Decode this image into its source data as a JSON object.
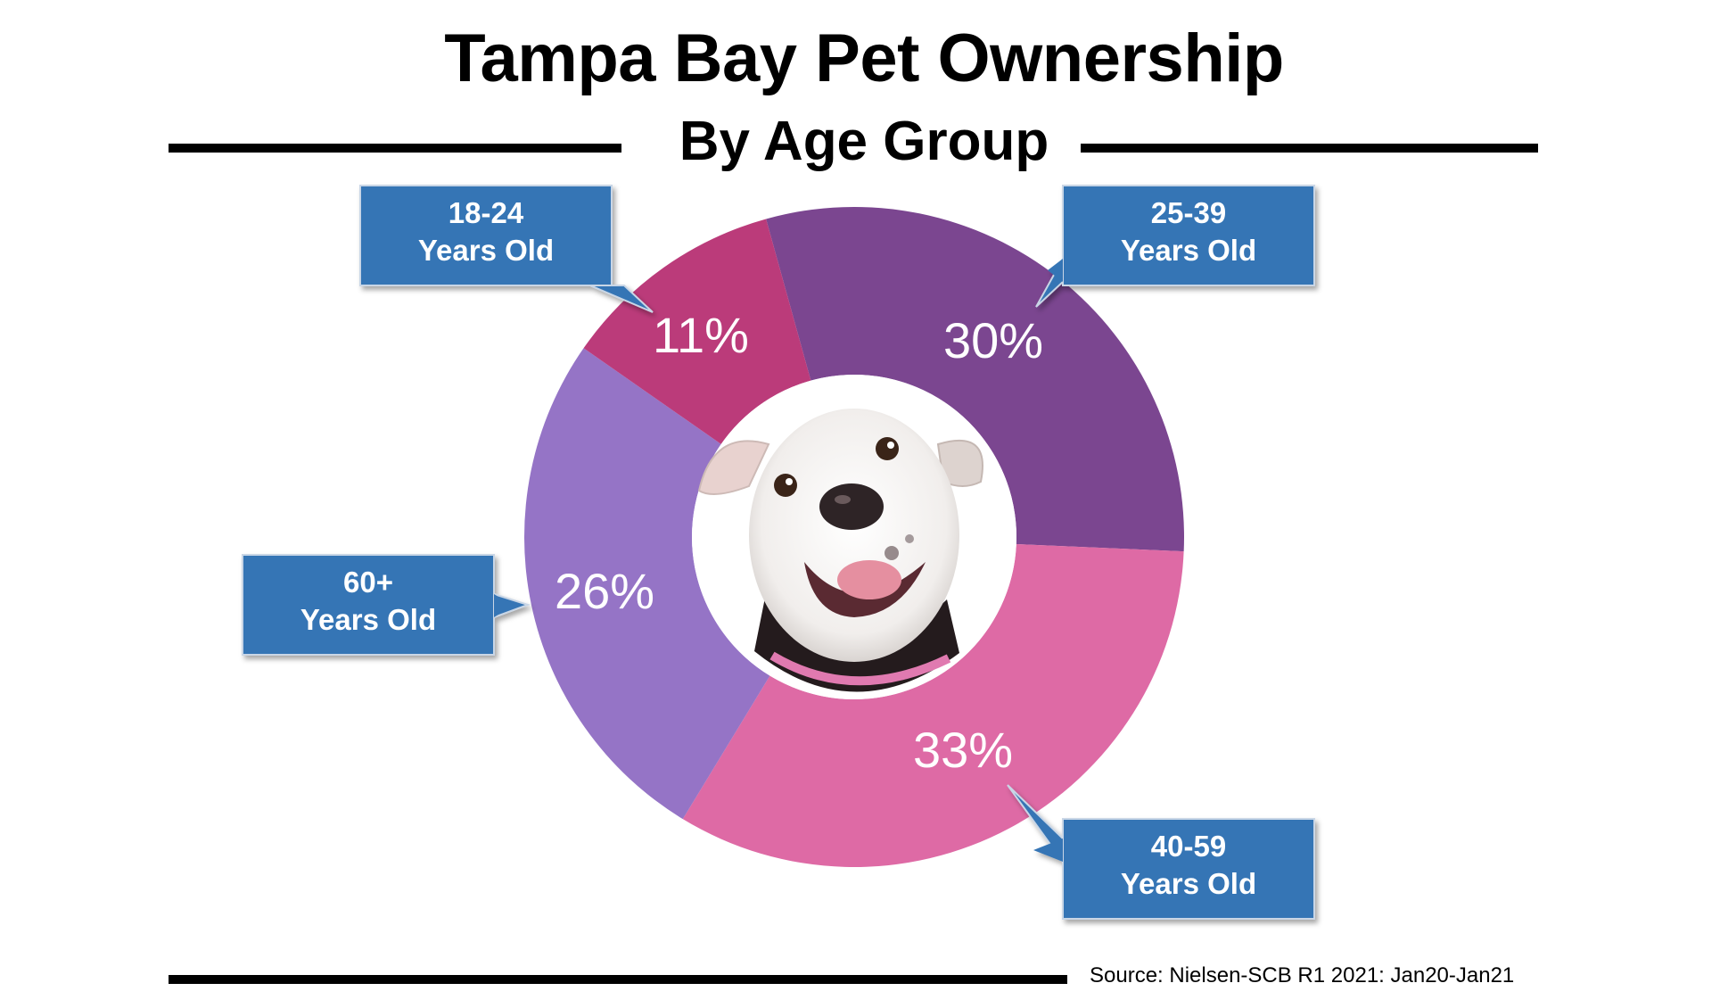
{
  "title": "Tampa Bay Pet Ownership",
  "subtitle": "By Age Group",
  "source": "Source: Nielsen-SCB R1 2021: Jan20-Jan21",
  "colors": {
    "callout": "#3575b5",
    "rule": "#000000"
  },
  "center_image": "dog-photo",
  "chart_data": {
    "type": "pie",
    "variant": "donut",
    "categories": [
      "25-39 Years Old",
      "40-59 Years Old",
      "60+ Years Old",
      "18-24 Years Old"
    ],
    "values": [
      30,
      33,
      26,
      11
    ],
    "labels": [
      "30%",
      "33%",
      "26%",
      "11%"
    ],
    "callouts": [
      {
        "line1": "25-39",
        "line2": "Years Old"
      },
      {
        "line1": "40-59",
        "line2": "Years Old"
      },
      {
        "line1": "60+",
        "line2": "Years Old"
      },
      {
        "line1": "18-24",
        "line2": "Years Old"
      }
    ],
    "colors": [
      "#7b4690",
      "#de6aa5",
      "#9574c6",
      "#bb3b7a"
    ]
  }
}
